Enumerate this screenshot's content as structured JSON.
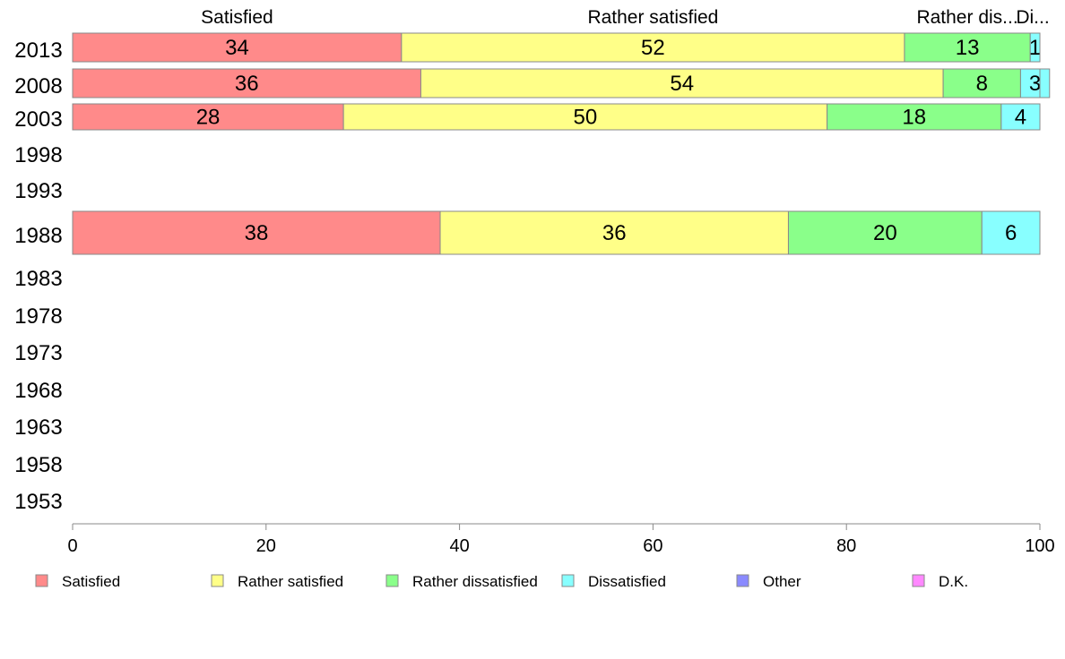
{
  "chart_data": {
    "type": "bar",
    "orientation": "horizontal",
    "stacked": true,
    "categories": [
      "2013",
      "2008",
      "2003",
      "1998",
      "1993",
      "1988",
      "1983",
      "1978",
      "1973",
      "1968",
      "1963",
      "1958",
      "1953"
    ],
    "series": [
      {
        "name": "Satisfied",
        "color": "#ff8a8a",
        "values": [
          34,
          36,
          28,
          null,
          null,
          38,
          null,
          null,
          null,
          null,
          null,
          null,
          null
        ]
      },
      {
        "name": "Rather satisfied",
        "color": "#ffff88",
        "values": [
          52,
          54,
          50,
          null,
          null,
          36,
          null,
          null,
          null,
          null,
          null,
          null,
          null
        ]
      },
      {
        "name": "Rather dissatisfied",
        "color": "#8aff8a",
        "values": [
          13,
          8,
          18,
          null,
          null,
          20,
          null,
          null,
          null,
          null,
          null,
          null,
          null
        ]
      },
      {
        "name": "Dissatisfied",
        "color": "#88ffff",
        "values": [
          1,
          3,
          4,
          null,
          null,
          6,
          null,
          null,
          null,
          null,
          null,
          null,
          null
        ]
      },
      {
        "name": "Other",
        "color": "#8a8aff",
        "values": [
          0,
          0,
          0,
          null,
          null,
          0,
          null,
          null,
          null,
          null,
          null,
          null,
          null
        ]
      },
      {
        "name": "D.K.",
        "color": "#ff88ff",
        "values": [
          0,
          0,
          0,
          null,
          null,
          0,
          null,
          null,
          null,
          null,
          null,
          null,
          null
        ]
      }
    ],
    "column_headers": [
      "Satisfied",
      "Rather satisfied",
      "Rather dis...",
      "Di..."
    ],
    "xlim": [
      0,
      100
    ],
    "xticks": [
      0,
      20,
      40,
      60,
      80,
      100
    ],
    "legend_position": "bottom",
    "grid": false
  }
}
